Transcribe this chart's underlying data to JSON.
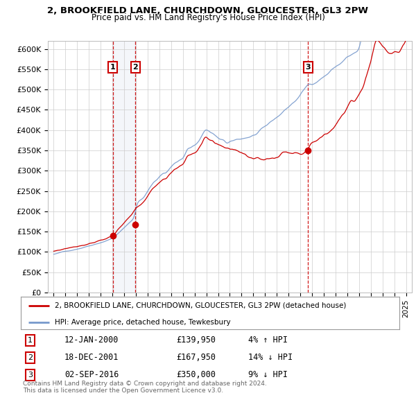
{
  "title1": "2, BROOKFIELD LANE, CHURCHDOWN, GLOUCESTER, GL3 2PW",
  "title2": "Price paid vs. HM Land Registry's House Price Index (HPI)",
  "ylabel_ticks": [
    "£0",
    "£50K",
    "£100K",
    "£150K",
    "£200K",
    "£250K",
    "£300K",
    "£350K",
    "£400K",
    "£450K",
    "£500K",
    "£550K",
    "£600K"
  ],
  "ytick_values": [
    0,
    50000,
    100000,
    150000,
    200000,
    250000,
    300000,
    350000,
    400000,
    450000,
    500000,
    550000,
    600000
  ],
  "xlim_start": 1994.5,
  "xlim_end": 2025.5,
  "ylim_min": 0,
  "ylim_max": 620000,
  "legend_line1": "2, BROOKFIELD LANE, CHURCHDOWN, GLOUCESTER, GL3 2PW (detached house)",
  "legend_line2": "HPI: Average price, detached house, Tewkesbury",
  "sales": [
    {
      "num": 1,
      "date_x": 2000.04,
      "price": 139950,
      "label": "1",
      "date_str": "12-JAN-2000",
      "price_str": "£139,950",
      "change": "4% ↑ HPI"
    },
    {
      "num": 2,
      "date_x": 2001.96,
      "price": 167950,
      "label": "2",
      "date_str": "18-DEC-2001",
      "price_str": "£167,950",
      "change": "14% ↓ HPI"
    },
    {
      "num": 3,
      "date_x": 2016.67,
      "price": 350000,
      "label": "3",
      "date_str": "02-SEP-2016",
      "price_str": "£350,000",
      "change": "9% ↓ HPI"
    }
  ],
  "hpi_color": "#7799cc",
  "price_color": "#cc0000",
  "sale_marker_color": "#cc0000",
  "grid_color": "#cccccc",
  "footnote1": "Contains HM Land Registry data © Crown copyright and database right 2024.",
  "footnote2": "This data is licensed under the Open Government Licence v3.0.",
  "background_color": "#ffffff"
}
